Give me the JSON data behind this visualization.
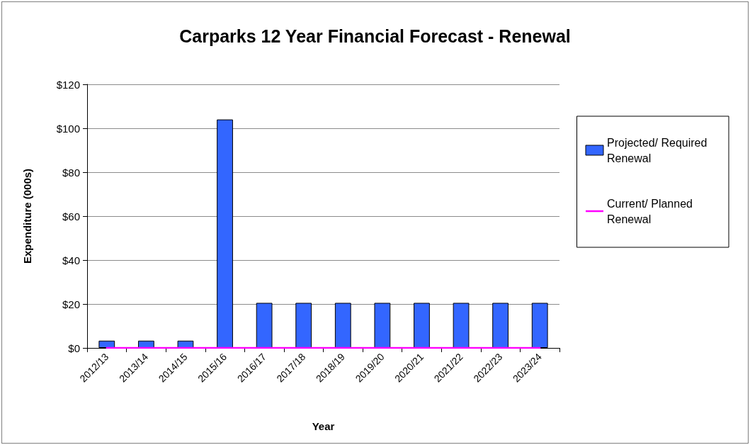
{
  "chart_data": {
    "type": "bar",
    "title": "Carparks 12 Year Financial Forecast - Renewal",
    "xlabel": "Year",
    "ylabel": "Expenditure (000s)",
    "categories": [
      "2012/13",
      "2013/14",
      "2014/15",
      "2015/16",
      "2016/17",
      "2017/18",
      "2018/19",
      "2019/20",
      "2020/21",
      "2021/22",
      "2022/23",
      "2023/24"
    ],
    "series": [
      {
        "name": "Projected/ Required Renewal",
        "color": "#3366ff",
        "values": [
          3.3,
          3.3,
          3.3,
          104,
          20.5,
          20.5,
          20.5,
          20.5,
          20.5,
          20.5,
          20.5,
          20.5
        ]
      },
      {
        "name": "Current/ Planned Renewal",
        "type": "line",
        "color": "#ff00ff",
        "values": [
          0,
          0,
          0,
          0,
          0,
          0,
          0,
          0,
          0,
          0,
          0,
          0
        ]
      }
    ],
    "ylim": [
      0,
      120
    ],
    "yticks": [
      {
        "value": 0,
        "label": "$0"
      },
      {
        "value": 20,
        "label": "$20"
      },
      {
        "value": 40,
        "label": "$40"
      },
      {
        "value": 60,
        "label": "$60"
      },
      {
        "value": 80,
        "label": "$80"
      },
      {
        "value": 100,
        "label": "$100"
      },
      {
        "value": 120,
        "label": "$120"
      }
    ],
    "grid": "y",
    "legend": "right",
    "marker": "none",
    "line_style": "solid"
  }
}
